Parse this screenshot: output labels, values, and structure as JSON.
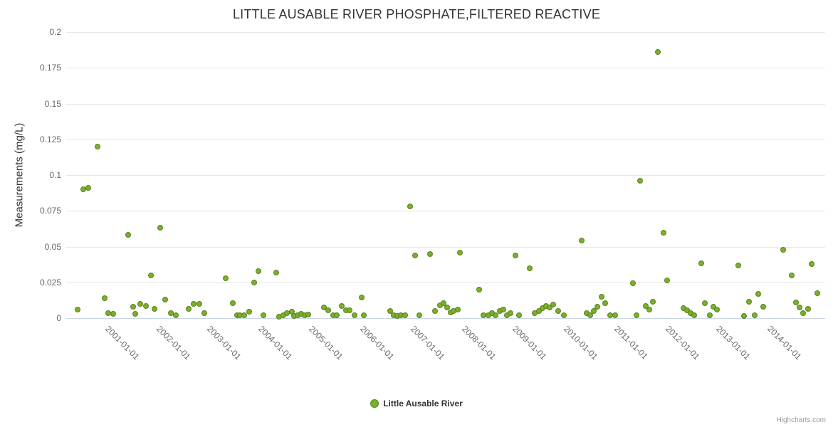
{
  "credits": "Highcharts.com",
  "legend": {
    "label": "Little Ausable River"
  },
  "colors": {
    "title": "#333333",
    "axis_labels": "#666666",
    "gridline": "#e6e6e6",
    "axis_line": "#ccd6eb",
    "point_fill": "#7ab02a",
    "point_border": "#59821f",
    "legend_text": "#333333",
    "credits_text": "#999999"
  },
  "chart_data": {
    "type": "scatter",
    "title": "LITTLE AUSABLE RIVER PHOSPHATE,FILTERED REACTIVE",
    "xlabel": "",
    "ylabel": "Measurements (mg/L)",
    "grid": true,
    "legend_position": "bottom",
    "xlim": [
      2000.0,
      2014.91
    ],
    "ylim": [
      0,
      0.2
    ],
    "y_ticks": [
      0,
      0.025,
      0.05,
      0.075,
      0.1,
      0.125,
      0.15,
      0.175,
      0.2
    ],
    "y_tick_labels": [
      "0",
      "0.025",
      "0.05",
      "0.075",
      "0.1",
      "0.125",
      "0.15",
      "0.175",
      "0.2"
    ],
    "x_ticks": [
      2001,
      2002,
      2003,
      2004,
      2005,
      2006,
      2007,
      2008,
      2009,
      2010,
      2011,
      2012,
      2013,
      2014
    ],
    "x_tick_labels": [
      "2001-01-01",
      "2002-01-01",
      "2003-01-01",
      "2004-01-01",
      "2005-01-01",
      "2006-01-01",
      "2007-01-01",
      "2008-01-01",
      "2009-01-01",
      "2010-01-01",
      "2011-01-01",
      "2012-01-01",
      "2013-01-01",
      "2014-01-01"
    ],
    "series": [
      {
        "name": "Little Ausable River",
        "color": "#7ab02a",
        "border_color": "#59821f",
        "points": [
          [
            2000.23,
            0.006
          ],
          [
            2000.34,
            0.09
          ],
          [
            2000.44,
            0.091
          ],
          [
            2000.61,
            0.12
          ],
          [
            2000.76,
            0.014
          ],
          [
            2000.82,
            0.0035
          ],
          [
            2000.93,
            0.003
          ],
          [
            2001.21,
            0.058
          ],
          [
            2001.32,
            0.008
          ],
          [
            2001.35,
            0.003
          ],
          [
            2001.46,
            0.01
          ],
          [
            2001.56,
            0.0085
          ],
          [
            2001.67,
            0.03
          ],
          [
            2001.74,
            0.0065
          ],
          [
            2001.85,
            0.063
          ],
          [
            2001.95,
            0.013
          ],
          [
            2002.05,
            0.0035
          ],
          [
            2002.15,
            0.002
          ],
          [
            2002.4,
            0.0065
          ],
          [
            2002.5,
            0.01
          ],
          [
            2002.61,
            0.01
          ],
          [
            2002.71,
            0.0035
          ],
          [
            2003.14,
            0.028
          ],
          [
            2003.27,
            0.0105
          ],
          [
            2003.35,
            0.002
          ],
          [
            2003.41,
            0.002
          ],
          [
            2003.49,
            0.002
          ],
          [
            2003.59,
            0.0045
          ],
          [
            2003.69,
            0.025
          ],
          [
            2003.77,
            0.033
          ],
          [
            2003.87,
            0.002
          ],
          [
            2004.12,
            0.032
          ],
          [
            2004.18,
            0.001
          ],
          [
            2004.26,
            0.002
          ],
          [
            2004.34,
            0.0035
          ],
          [
            2004.43,
            0.0045
          ],
          [
            2004.47,
            0.0015
          ],
          [
            2004.55,
            0.002
          ],
          [
            2004.62,
            0.003
          ],
          [
            2004.68,
            0.002
          ],
          [
            2004.75,
            0.0025
          ],
          [
            2005.06,
            0.0075
          ],
          [
            2005.15,
            0.0055
          ],
          [
            2005.24,
            0.002
          ],
          [
            2005.31,
            0.002
          ],
          [
            2005.41,
            0.0085
          ],
          [
            2005.5,
            0.0055
          ],
          [
            2005.57,
            0.0055
          ],
          [
            2005.66,
            0.002
          ],
          [
            2005.8,
            0.0145
          ],
          [
            2005.85,
            0.002
          ],
          [
            2006.36,
            0.005
          ],
          [
            2006.43,
            0.002
          ],
          [
            2006.5,
            0.0015
          ],
          [
            2006.57,
            0.002
          ],
          [
            2006.66,
            0.002
          ],
          [
            2006.76,
            0.078
          ],
          [
            2006.85,
            0.044
          ],
          [
            2006.94,
            0.002
          ],
          [
            2007.15,
            0.045
          ],
          [
            2007.25,
            0.005
          ],
          [
            2007.34,
            0.009
          ],
          [
            2007.41,
            0.0105
          ],
          [
            2007.48,
            0.0075
          ],
          [
            2007.55,
            0.004
          ],
          [
            2007.61,
            0.005
          ],
          [
            2007.69,
            0.006
          ],
          [
            2007.74,
            0.046
          ],
          [
            2008.11,
            0.02
          ],
          [
            2008.2,
            0.002
          ],
          [
            2008.29,
            0.002
          ],
          [
            2008.36,
            0.0035
          ],
          [
            2008.44,
            0.002
          ],
          [
            2008.52,
            0.005
          ],
          [
            2008.59,
            0.006
          ],
          [
            2008.66,
            0.002
          ],
          [
            2008.73,
            0.0035
          ],
          [
            2008.82,
            0.044
          ],
          [
            2008.9,
            0.002
          ],
          [
            2009.11,
            0.035
          ],
          [
            2009.21,
            0.0035
          ],
          [
            2009.29,
            0.005
          ],
          [
            2009.36,
            0.007
          ],
          [
            2009.43,
            0.0085
          ],
          [
            2009.5,
            0.0075
          ],
          [
            2009.57,
            0.0095
          ],
          [
            2009.67,
            0.005
          ],
          [
            2009.77,
            0.002
          ],
          [
            2010.13,
            0.054
          ],
          [
            2010.23,
            0.0035
          ],
          [
            2010.3,
            0.002
          ],
          [
            2010.37,
            0.005
          ],
          [
            2010.44,
            0.008
          ],
          [
            2010.52,
            0.015
          ],
          [
            2010.59,
            0.0105
          ],
          [
            2010.69,
            0.002
          ],
          [
            2010.78,
            0.002
          ],
          [
            2011.14,
            0.0245
          ],
          [
            2011.21,
            0.002
          ],
          [
            2011.28,
            0.096
          ],
          [
            2011.38,
            0.0085
          ],
          [
            2011.45,
            0.006
          ],
          [
            2011.53,
            0.0115
          ],
          [
            2011.63,
            0.186
          ],
          [
            2011.73,
            0.0595
          ],
          [
            2011.81,
            0.0265
          ],
          [
            2012.12,
            0.007
          ],
          [
            2012.2,
            0.0055
          ],
          [
            2012.27,
            0.0035
          ],
          [
            2012.34,
            0.002
          ],
          [
            2012.47,
            0.0385
          ],
          [
            2012.55,
            0.0105
          ],
          [
            2012.64,
            0.002
          ],
          [
            2012.72,
            0.008
          ],
          [
            2012.79,
            0.006
          ],
          [
            2013.21,
            0.037
          ],
          [
            2013.31,
            0.0015
          ],
          [
            2013.42,
            0.0115
          ],
          [
            2013.52,
            0.002
          ],
          [
            2013.6,
            0.017
          ],
          [
            2013.69,
            0.008
          ],
          [
            2014.08,
            0.048
          ],
          [
            2014.25,
            0.03
          ],
          [
            2014.33,
            0.011
          ],
          [
            2014.4,
            0.0075
          ],
          [
            2014.47,
            0.0035
          ],
          [
            2014.57,
            0.0065
          ],
          [
            2014.64,
            0.038
          ],
          [
            2014.75,
            0.0175
          ]
        ]
      }
    ]
  }
}
